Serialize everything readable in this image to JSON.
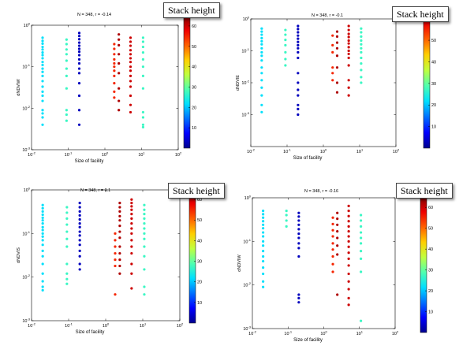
{
  "colormap": [
    "#00008f",
    "#0000ff",
    "#0070ff",
    "#00dfff",
    "#50ffaf",
    "#c0ff3f",
    "#ffcf00",
    "#ff6000",
    "#ef0000",
    "#800000"
  ],
  "chart_data": [
    {
      "type": "scatter",
      "stats": "N = 348, r = -0.14",
      "ylabel": "dNDVIW",
      "xlabel": "Size of facility",
      "xlog": true,
      "ylog": true,
      "xlim": [
        0.01,
        100
      ],
      "ylim": [
        0.001,
        1
      ],
      "x_ticks": [
        [
          "10^-2",
          0.01
        ],
        [
          "10^-1",
          0.1
        ],
        [
          "10^0",
          1
        ],
        [
          "10^1",
          10
        ],
        [
          "10^2",
          100
        ]
      ],
      "y_ticks": [
        [
          "10^0",
          1
        ],
        [
          "10^-1",
          0.1
        ],
        [
          "10^-2",
          0.01
        ],
        [
          "10^-3",
          0.001
        ]
      ],
      "colorbar": {
        "label": "Stack height",
        "range": [
          0,
          65
        ],
        "ticks": [
          10,
          20,
          30,
          40,
          50,
          60
        ]
      },
      "columns": [
        {
          "x": 0.02,
          "height": 22,
          "y": [
            0.5,
            0.42,
            0.36,
            0.3,
            0.26,
            0.22,
            0.19,
            0.16,
            0.13,
            0.11,
            0.09,
            0.075,
            0.06,
            0.045,
            0.033,
            0.025,
            0.02,
            0.015,
            0.009,
            0.0075,
            0.006,
            0.004
          ]
        },
        {
          "x": 0.09,
          "height": 27,
          "y": [
            0.45,
            0.35,
            0.26,
            0.2,
            0.14,
            0.09,
            0.06,
            0.03,
            0.009,
            0.007,
            0.005
          ]
        },
        {
          "x": 0.2,
          "height": 3,
          "y": [
            0.65,
            0.55,
            0.46,
            0.38,
            0.32,
            0.27,
            0.23,
            0.19,
            0.15,
            0.12,
            0.09,
            0.07,
            0.04,
            0.02,
            0.009,
            0.004
          ]
        },
        {
          "x": 1.8,
          "height": 55,
          "y": [
            0.35,
            0.27,
            0.2,
            0.15,
            0.12,
            0.1,
            0.08,
            0.06,
            0.04,
            0.025,
            0.018
          ]
        },
        {
          "x": 2.4,
          "height": 62,
          "y": [
            0.6,
            0.45,
            0.33,
            0.2,
            0.12,
            0.07,
            0.03,
            0.015,
            0.009
          ]
        },
        {
          "x": 5,
          "height": 60,
          "y": [
            0.5,
            0.4,
            0.32,
            0.25,
            0.2,
            0.16,
            0.13,
            0.1,
            0.08,
            0.06,
            0.045,
            0.033,
            0.02,
            0.012,
            0.008
          ]
        },
        {
          "x": 11,
          "height": 27,
          "y": [
            0.5,
            0.4,
            0.3,
            0.22,
            0.15,
            0.1,
            0.06,
            0.03,
            0.008,
            0.006,
            0.004,
            0.0035
          ]
        }
      ]
    },
    {
      "type": "scatter",
      "stats": "N = 348, r = -0.1",
      "ylabel": "dNDVIE",
      "xlabel": "Size of facility",
      "xlog": true,
      "ylog": true,
      "xlim": [
        0.01,
        100
      ],
      "ylim": [
        0.0001,
        1
      ],
      "x_ticks": [
        [
          "10^-2",
          0.01
        ],
        [
          "10^-1",
          0.1
        ],
        [
          "10^0",
          1
        ],
        [
          "10^1",
          10
        ],
        [
          "10^2",
          100
        ]
      ],
      "y_ticks": [
        [
          "10^0",
          1
        ],
        [
          "10^-1",
          0.1
        ],
        [
          "10^-2",
          0.01
        ],
        [
          "10^-3",
          0.001
        ]
      ],
      "colorbar": {
        "label": "Stack height",
        "range": [
          0,
          65
        ],
        "ticks": [
          10,
          20,
          30,
          40,
          50,
          60
        ]
      },
      "columns": [
        {
          "x": 0.02,
          "height": 22,
          "y": [
            0.5,
            0.4,
            0.32,
            0.25,
            0.2,
            0.16,
            0.12,
            0.09,
            0.07,
            0.05,
            0.03,
            0.02,
            0.012,
            0.007,
            0.004,
            0.002,
            0.0012
          ]
        },
        {
          "x": 0.09,
          "height": 27,
          "y": [
            0.45,
            0.32,
            0.22,
            0.15,
            0.09,
            0.055,
            0.035
          ]
        },
        {
          "x": 0.2,
          "height": 3,
          "y": [
            0.6,
            0.48,
            0.38,
            0.3,
            0.24,
            0.19,
            0.15,
            0.12,
            0.09,
            0.06,
            0.02,
            0.01,
            0.006,
            0.004,
            0.002,
            0.0015,
            0.001
          ]
        },
        {
          "x": 1.8,
          "height": 55,
          "y": [
            0.3,
            0.15,
            0.09,
            0.03,
            0.02,
            0.012
          ]
        },
        {
          "x": 2.4,
          "height": 62,
          "y": [
            0.4,
            0.28,
            0.18,
            0.12,
            0.07,
            0.03,
            0.01,
            0.005
          ]
        },
        {
          "x": 5,
          "height": 60,
          "y": [
            0.6,
            0.45,
            0.34,
            0.27,
            0.21,
            0.17,
            0.13,
            0.1,
            0.08,
            0.06,
            0.035,
            0.012,
            0.007,
            0.004
          ]
        },
        {
          "x": 11,
          "height": 27,
          "y": [
            0.5,
            0.38,
            0.28,
            0.21,
            0.16,
            0.12,
            0.09,
            0.06,
            0.04,
            0.025,
            0.015,
            0.01
          ]
        }
      ]
    },
    {
      "type": "scatter",
      "stats": "N = 348, r = 0.1",
      "ylabel": "dNDVIS",
      "xlabel": "Size of facility",
      "xlog": true,
      "ylog": true,
      "xlim": [
        0.01,
        100
      ],
      "ylim": [
        0.001,
        1
      ],
      "x_ticks": [
        [
          "10^-2",
          0.01
        ],
        [
          "10^-1",
          0.1
        ],
        [
          "10^0",
          1
        ],
        [
          "10^1",
          10
        ],
        [
          "10^2",
          100
        ]
      ],
      "y_ticks": [
        [
          "10^0",
          1
        ],
        [
          "10^-1",
          0.1
        ],
        [
          "10^-2",
          0.01
        ],
        [
          "10^-3",
          0.001
        ]
      ],
      "colorbar": {
        "label": "Stack height",
        "range": [
          0,
          65
        ],
        "ticks": [
          10,
          20,
          30,
          40,
          50,
          60
        ]
      },
      "columns": [
        {
          "x": 0.02,
          "height": 22,
          "y": [
            0.45,
            0.38,
            0.32,
            0.27,
            0.23,
            0.2,
            0.17,
            0.14,
            0.12,
            0.1,
            0.085,
            0.07,
            0.055,
            0.04,
            0.03,
            0.02,
            0.012,
            0.008,
            0.006,
            0.005
          ]
        },
        {
          "x": 0.09,
          "height": 27,
          "y": [
            0.4,
            0.3,
            0.22,
            0.16,
            0.11,
            0.075,
            0.05,
            0.02,
            0.012,
            0.009,
            0.007
          ]
        },
        {
          "x": 0.2,
          "height": 3,
          "y": [
            0.5,
            0.4,
            0.32,
            0.26,
            0.21,
            0.17,
            0.14,
            0.11,
            0.09,
            0.07,
            0.055,
            0.04,
            0.03,
            0.02,
            0.015
          ]
        },
        {
          "x": 1.8,
          "height": 55,
          "y": [
            0.1,
            0.07,
            0.05,
            0.035,
            0.025,
            0.018,
            0.004
          ]
        },
        {
          "x": 2.4,
          "height": 62,
          "y": [
            0.5,
            0.4,
            0.32,
            0.25,
            0.2,
            0.15,
            0.11,
            0.08,
            0.05,
            0.035,
            0.025,
            0.018,
            0.012
          ]
        },
        {
          "x": 5,
          "height": 60,
          "y": [
            0.6,
            0.5,
            0.42,
            0.35,
            0.28,
            0.22,
            0.17,
            0.13,
            0.1,
            0.07,
            0.05,
            0.035,
            0.02,
            0.012,
            0.0055
          ]
        },
        {
          "x": 11,
          "height": 27,
          "y": [
            0.45,
            0.35,
            0.28,
            0.22,
            0.17,
            0.13,
            0.1,
            0.075,
            0.05,
            0.03,
            0.015,
            0.006,
            0.004
          ]
        }
      ]
    },
    {
      "type": "scatter",
      "stats": "N = 348, r = -0.16",
      "ylabel": "dNDVIW",
      "xlabel": "Size of facility",
      "xlog": true,
      "ylog": true,
      "xlim": [
        0.01,
        100
      ],
      "ylim": [
        0.001,
        1
      ],
      "x_ticks": [
        [
          "10^-2",
          0.01
        ],
        [
          "10^-1",
          0.1
        ],
        [
          "10^0",
          1
        ],
        [
          "10^1",
          10
        ],
        [
          "10^2",
          100
        ]
      ],
      "y_ticks": [
        [
          "10^0",
          1
        ],
        [
          "10^-1",
          0.1
        ],
        [
          "10^-2",
          0.01
        ],
        [
          "10^-3",
          0.001
        ]
      ],
      "colorbar": {
        "label": "Stack height",
        "range": [
          0,
          65
        ],
        "ticks": [
          10,
          20,
          30,
          40,
          50,
          60
        ]
      },
      "columns": [
        {
          "x": 0.02,
          "height": 22,
          "y": [
            0.5,
            0.42,
            0.35,
            0.29,
            0.24,
            0.2,
            0.16,
            0.13,
            0.1,
            0.08,
            0.06,
            0.045,
            0.035,
            0.025,
            0.018,
            0.012,
            0.009
          ]
        },
        {
          "x": 0.09,
          "height": 27,
          "y": [
            0.5,
            0.4,
            0.3,
            0.22
          ]
        },
        {
          "x": 0.2,
          "height": 3,
          "y": [
            0.45,
            0.37,
            0.3,
            0.24,
            0.19,
            0.15,
            0.12,
            0.09,
            0.07,
            0.045,
            0.006,
            0.005,
            0.004
          ]
        },
        {
          "x": 1.8,
          "height": 55,
          "y": [
            0.35,
            0.25,
            0.18,
            0.13,
            0.09,
            0.065,
            0.045,
            0.03,
            0.02
          ]
        },
        {
          "x": 2.4,
          "height": 62,
          "y": [
            0.45,
            0.33,
            0.24,
            0.17,
            0.12,
            0.08,
            0.05,
            0.006
          ]
        },
        {
          "x": 5,
          "height": 60,
          "y": [
            0.65,
            0.5,
            0.38,
            0.29,
            0.22,
            0.17,
            0.13,
            0.1,
            0.075,
            0.055,
            0.04,
            0.028,
            0.018,
            0.012,
            0.008,
            0.005,
            0.0035
          ]
        },
        {
          "x": 11,
          "height": 27,
          "y": [
            0.4,
            0.3,
            0.22,
            0.16,
            0.12,
            0.09,
            0.06,
            0.04,
            0.02,
            0.0015
          ]
        }
      ]
    }
  ]
}
